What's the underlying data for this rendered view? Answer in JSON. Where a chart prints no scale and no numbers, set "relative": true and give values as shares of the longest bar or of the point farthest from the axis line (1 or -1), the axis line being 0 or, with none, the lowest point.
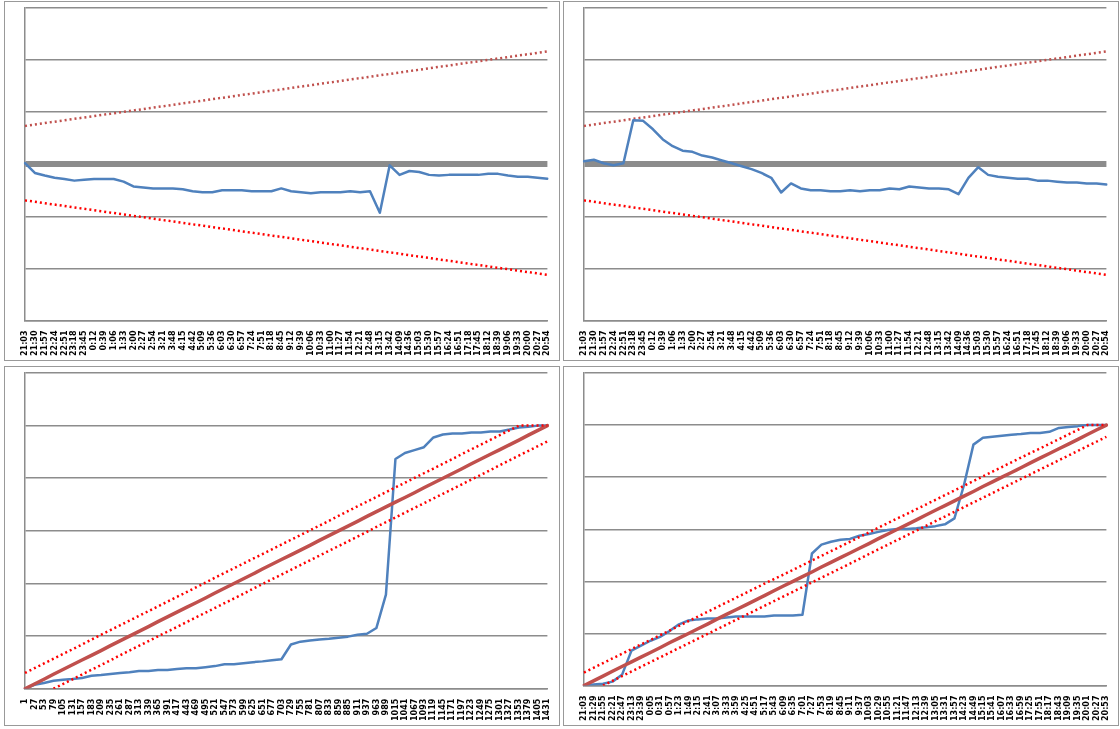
{
  "chart_data": [
    {
      "type": "line",
      "relative": true,
      "grid": "y",
      "legend": false,
      "marker": "none",
      "categories": [
        "21:03",
        "21:30",
        "21:57",
        "22:24",
        "22:51",
        "23:18",
        "23:45",
        "0:12",
        "0:39",
        "1:06",
        "1:33",
        "2:00",
        "2:27",
        "2:54",
        "3:21",
        "3:48",
        "4:15",
        "4:42",
        "5:09",
        "5:36",
        "6:03",
        "6:30",
        "6:57",
        "7:24",
        "7:51",
        "8:18",
        "8:45",
        "9:12",
        "9:39",
        "10:06",
        "10:33",
        "11:00",
        "11:27",
        "11:54",
        "12:21",
        "12:48",
        "13:15",
        "13:42",
        "14:09",
        "14:36",
        "15:03",
        "15:30",
        "15:57",
        "16:24",
        "16:51",
        "17:18",
        "17:45",
        "18:12",
        "18:39",
        "19:06",
        "19:33",
        "20:00",
        "20:27",
        "20:54"
      ],
      "series": [
        {
          "color": "#c0504d",
          "line_style": "dotted",
          "x": [
            "21:03",
            "20:54"
          ],
          "values": [
            0.34,
            1
          ]
        },
        {
          "color": "#ff0000",
          "line_style": "dotted",
          "x": [
            "21:03",
            "20:54"
          ],
          "values": [
            -0.32,
            -0.98
          ]
        },
        {
          "color": "#4f81bd",
          "line_style": "solid",
          "values": [
            0.01,
            -0.077,
            -0.1,
            -0.12,
            -0.13,
            -0.145,
            -0.137,
            -0.13,
            -0.13,
            -0.13,
            -0.154,
            -0.197,
            -0.205,
            -0.214,
            -0.214,
            -0.214,
            -0.222,
            -0.239,
            -0.248,
            -0.248,
            -0.231,
            -0.231,
            -0.231,
            -0.239,
            -0.239,
            -0.239,
            -0.214,
            -0.239,
            -0.248,
            -0.256,
            -0.248,
            -0.248,
            -0.248,
            -0.239,
            -0.248,
            -0.239,
            -0.43,
            -0.009,
            -0.094,
            -0.06,
            -0.068,
            -0.094,
            -0.1,
            -0.094,
            -0.094,
            -0.094,
            -0.094,
            -0.085,
            -0.085,
            -0.1,
            -0.111,
            -0.111,
            -0.12,
            -0.128
          ]
        }
      ]
    },
    {
      "type": "line",
      "relative": true,
      "grid": "y",
      "legend": false,
      "marker": "none",
      "categories": [
        "21:03",
        "21:30",
        "21:57",
        "22:24",
        "22:51",
        "23:18",
        "23:45",
        "0:12",
        "0:39",
        "1:06",
        "1:33",
        "2:00",
        "2:27",
        "2:54",
        "3:21",
        "3:48",
        "4:15",
        "4:42",
        "5:09",
        "5:36",
        "6:03",
        "6:30",
        "6:57",
        "7:24",
        "7:51",
        "8:18",
        "8:45",
        "9:12",
        "9:39",
        "10:06",
        "10:33",
        "11:00",
        "11:27",
        "11:54",
        "12:21",
        "12:48",
        "13:15",
        "13:42",
        "14:09",
        "14:36",
        "15:03",
        "15:30",
        "15:57",
        "16:24",
        "16:51",
        "17:18",
        "17:45",
        "18:12",
        "18:39",
        "19:06",
        "19:33",
        "20:00",
        "20:27",
        "20:54"
      ],
      "series": [
        {
          "color": "#c0504d",
          "line_style": "dotted",
          "x": [
            "21:03",
            "20:54"
          ],
          "values": [
            0.34,
            1
          ]
        },
        {
          "color": "#ff0000",
          "line_style": "dotted",
          "x": [
            "21:03",
            "20:54"
          ],
          "values": [
            -0.32,
            -0.98
          ]
        },
        {
          "color": "#4f81bd",
          "line_style": "solid",
          "values": [
            0.026,
            0.04,
            0.009,
            -0.009,
            0.009,
            0.39,
            0.385,
            0.31,
            0.22,
            0.16,
            0.12,
            0.11,
            0.077,
            0.06,
            0.034,
            0.009,
            -0.017,
            -0.043,
            -0.077,
            -0.12,
            -0.25,
            -0.17,
            -0.214,
            -0.23,
            -0.23,
            -0.239,
            -0.239,
            -0.23,
            -0.239,
            -0.23,
            -0.23,
            -0.214,
            -0.222,
            -0.197,
            -0.205,
            -0.214,
            -0.214,
            -0.222,
            -0.265,
            -0.12,
            -0.026,
            -0.094,
            -0.111,
            -0.12,
            -0.128,
            -0.128,
            -0.145,
            -0.145,
            -0.154,
            -0.162,
            -0.162,
            -0.17,
            -0.17,
            -0.18
          ]
        }
      ]
    },
    {
      "type": "line",
      "relative": true,
      "grid": "y",
      "legend": false,
      "marker": "none",
      "categories": [
        "1",
        "27",
        "53",
        "79",
        "105",
        "131",
        "157",
        "183",
        "209",
        "235",
        "261",
        "287",
        "313",
        "339",
        "365",
        "391",
        "417",
        "443",
        "469",
        "495",
        "521",
        "547",
        "573",
        "599",
        "625",
        "651",
        "677",
        "703",
        "729",
        "755",
        "781",
        "807",
        "833",
        "859",
        "885",
        "911",
        "937",
        "963",
        "989",
        "1015",
        "1041",
        "1067",
        "1093",
        "1119",
        "1145",
        "1171",
        "1197",
        "1223",
        "1249",
        "1275",
        "1301",
        "1327",
        "1353",
        "1379",
        "1405",
        "1431"
      ],
      "series": [
        {
          "color": "#ff0000",
          "line_style": "dotted",
          "values": [
            0.06,
            0.078,
            0.096,
            0.114,
            0.132,
            0.15,
            0.168,
            0.187,
            0.205,
            0.223,
            0.241,
            0.259,
            0.277,
            0.295,
            0.313,
            0.331,
            0.349,
            0.367,
            0.385,
            0.403,
            0.422,
            0.44,
            0.458,
            0.476,
            0.494,
            0.512,
            0.53,
            0.548,
            0.566,
            0.584,
            0.602,
            0.62,
            0.638,
            0.657,
            0.675,
            0.693,
            0.711,
            0.729,
            0.747,
            0.765,
            0.783,
            0.801,
            0.819,
            0.837,
            0.855,
            0.873,
            0.892,
            0.91,
            0.928,
            0.946,
            0.964,
            0.982,
            1,
            1,
            1,
            1
          ]
        },
        {
          "color": "#ff0000",
          "line_style": "dotted",
          "values": [
            null,
            null,
            null,
            0,
            0.018,
            0.036,
            0.054,
            0.072,
            0.09,
            0.108,
            0.127,
            0.145,
            0.163,
            0.181,
            0.199,
            0.217,
            0.235,
            0.253,
            0.271,
            0.289,
            0.307,
            0.325,
            0.343,
            0.361,
            0.38,
            0.398,
            0.416,
            0.434,
            0.452,
            0.47,
            0.488,
            0.506,
            0.524,
            0.542,
            0.56,
            0.578,
            0.596,
            0.615,
            0.633,
            0.651,
            0.669,
            0.687,
            0.705,
            0.723,
            0.741,
            0.759,
            0.777,
            0.795,
            0.813,
            0.831,
            0.85,
            0.868,
            0.886,
            0.904,
            0.922,
            0.94
          ]
        },
        {
          "color": "#c0504d",
          "line_style": "solid",
          "values": [
            0,
            0.018,
            0.036,
            0.055,
            0.073,
            0.091,
            0.109,
            0.127,
            0.145,
            0.164,
            0.182,
            0.2,
            0.218,
            0.236,
            0.255,
            0.273,
            0.291,
            0.309,
            0.327,
            0.345,
            0.364,
            0.382,
            0.4,
            0.418,
            0.436,
            0.455,
            0.473,
            0.491,
            0.509,
            0.527,
            0.545,
            0.564,
            0.582,
            0.6,
            0.618,
            0.636,
            0.655,
            0.673,
            0.691,
            0.709,
            0.727,
            0.745,
            0.764,
            0.782,
            0.8,
            0.818,
            0.836,
            0.855,
            0.873,
            0.891,
            0.909,
            0.927,
            0.945,
            0.964,
            0.982,
            1
          ]
        },
        {
          "color": "#4f81bd",
          "line_style": "solid",
          "values": [
            0,
            0.015,
            0.022,
            0.03,
            0.034,
            0.037,
            0.041,
            0.049,
            0.052,
            0.056,
            0.06,
            0.063,
            0.067,
            0.067,
            0.071,
            0.071,
            0.075,
            0.078,
            0.078,
            0.082,
            0.086,
            0.093,
            0.093,
            0.097,
            0.101,
            0.104,
            0.108,
            0.112,
            0.168,
            0.179,
            0.183,
            0.187,
            0.19,
            0.194,
            0.198,
            0.205,
            0.209,
            0.231,
            0.358,
            0.873,
            0.896,
            0.907,
            0.918,
            0.955,
            0.966,
            0.97,
            0.97,
            0.974,
            0.974,
            0.978,
            0.978,
            0.985,
            0.993,
            0.996,
            1,
            1
          ]
        }
      ]
    },
    {
      "type": "line",
      "relative": true,
      "grid": "y",
      "legend": false,
      "marker": "none",
      "categories": [
        "21:03",
        "21:29",
        "21:55",
        "22:21",
        "22:47",
        "23:13",
        "23:39",
        "0:05",
        "0:31",
        "0:57",
        "1:23",
        "1:49",
        "2:15",
        "2:41",
        "3:07",
        "3:33",
        "3:59",
        "4:25",
        "4:51",
        "5:17",
        "5:43",
        "6:09",
        "6:35",
        "7:01",
        "7:27",
        "7:53",
        "8:19",
        "8:45",
        "9:11",
        "9:37",
        "10:03",
        "10:29",
        "10:55",
        "11:21",
        "11:47",
        "12:13",
        "12:39",
        "13:05",
        "13:31",
        "13:57",
        "14:23",
        "14:49",
        "15:15",
        "15:41",
        "16:07",
        "16:33",
        "16:59",
        "17:25",
        "17:51",
        "18:17",
        "18:43",
        "19:09",
        "19:35",
        "20:01",
        "20:27",
        "20:53"
      ],
      "series": [
        {
          "color": "#ff0000",
          "line_style": "dotted",
          "values": [
            0.05,
            0.068,
            0.086,
            0.104,
            0.122,
            0.14,
            0.158,
            0.175,
            0.193,
            0.211,
            0.229,
            0.247,
            0.265,
            0.283,
            0.301,
            0.319,
            0.337,
            0.355,
            0.373,
            0.391,
            0.409,
            0.426,
            0.444,
            0.462,
            0.48,
            0.498,
            0.516,
            0.534,
            0.552,
            0.57,
            0.588,
            0.606,
            0.624,
            0.642,
            0.659,
            0.677,
            0.695,
            0.713,
            0.731,
            0.749,
            0.767,
            0.785,
            0.803,
            0.821,
            0.839,
            0.857,
            0.875,
            0.893,
            0.91,
            0.928,
            0.946,
            0.964,
            0.982,
            1,
            1,
            1
          ]
        },
        {
          "color": "#ff0000",
          "line_style": "dotted",
          "values": [
            null,
            null,
            0,
            0.018,
            0.036,
            0.054,
            0.072,
            0.09,
            0.108,
            0.126,
            0.144,
            0.162,
            0.18,
            0.198,
            0.216,
            0.234,
            0.252,
            0.27,
            0.288,
            0.306,
            0.324,
            0.342,
            0.36,
            0.378,
            0.396,
            0.414,
            0.432,
            0.45,
            0.468,
            0.486,
            0.505,
            0.523,
            0.541,
            0.559,
            0.577,
            0.595,
            0.613,
            0.631,
            0.649,
            0.667,
            0.685,
            0.703,
            0.721,
            0.739,
            0.757,
            0.775,
            0.793,
            0.811,
            0.829,
            0.847,
            0.865,
            0.883,
            0.901,
            0.919,
            0.937,
            0.955
          ]
        },
        {
          "color": "#c0504d",
          "line_style": "solid",
          "values": [
            0,
            0.018,
            0.036,
            0.055,
            0.073,
            0.091,
            0.109,
            0.127,
            0.145,
            0.164,
            0.182,
            0.2,
            0.218,
            0.236,
            0.255,
            0.273,
            0.291,
            0.309,
            0.327,
            0.345,
            0.364,
            0.382,
            0.4,
            0.418,
            0.436,
            0.455,
            0.473,
            0.491,
            0.509,
            0.527,
            0.545,
            0.564,
            0.582,
            0.6,
            0.618,
            0.636,
            0.655,
            0.673,
            0.691,
            0.709,
            0.727,
            0.745,
            0.764,
            0.782,
            0.8,
            0.818,
            0.836,
            0.855,
            0.873,
            0.891,
            0.909,
            0.927,
            0.945,
            0.964,
            0.982,
            1
          ]
        },
        {
          "color": "#4f81bd",
          "line_style": "solid",
          "values": [
            0,
            0.004,
            0.007,
            0.015,
            0.041,
            0.134,
            0.153,
            0.172,
            0.187,
            0.209,
            0.235,
            0.25,
            0.254,
            0.257,
            0.257,
            0.261,
            0.265,
            0.265,
            0.265,
            0.265,
            0.269,
            0.269,
            0.269,
            0.272,
            0.507,
            0.541,
            0.552,
            0.56,
            0.563,
            0.575,
            0.582,
            0.59,
            0.597,
            0.601,
            0.601,
            0.604,
            0.608,
            0.612,
            0.619,
            0.642,
            0.769,
            0.925,
            0.951,
            0.955,
            0.959,
            0.963,
            0.966,
            0.97,
            0.97,
            0.974,
            0.989,
            0.993,
            0.996,
            1,
            1,
            1
          ]
        }
      ]
    }
  ]
}
